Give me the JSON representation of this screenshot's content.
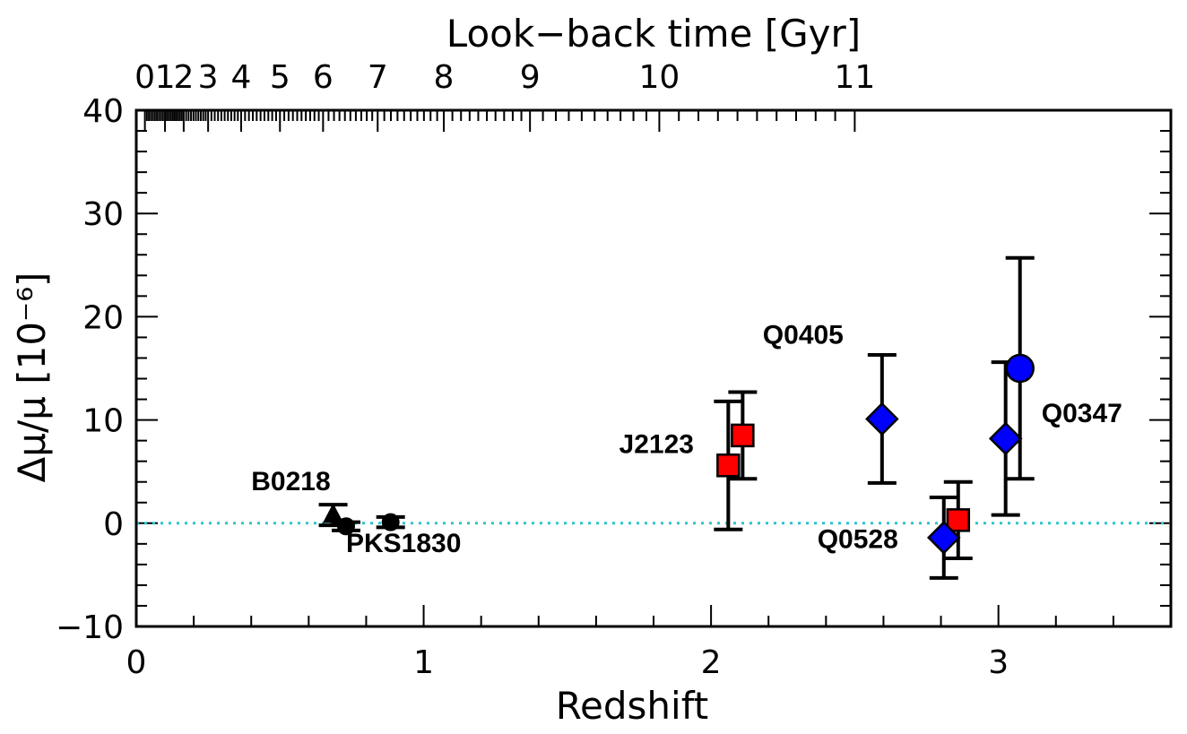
{
  "chart_data": {
    "type": "scatter",
    "xlabel": "Redshift",
    "x2label": "Look−back time [Gyr]",
    "ylabel": "Δμ/μ  [10⁻⁶]",
    "xlim": [
      0,
      3.6
    ],
    "ylim": [
      -10,
      40
    ],
    "grid": false,
    "x_ticks": [
      "0",
      "1",
      "2",
      "3"
    ],
    "y_ticks": [
      "−10",
      "0",
      "10",
      "20",
      "30",
      "40"
    ],
    "top_ticks": [
      {
        "label": "0",
        "z": 0.03
      },
      {
        "label": "1",
        "z": 0.1
      },
      {
        "label": "2",
        "z": 0.165
      },
      {
        "label": "3",
        "z": 0.25
      },
      {
        "label": "4",
        "z": 0.365
      },
      {
        "label": "5",
        "z": 0.5
      },
      {
        "label": "6",
        "z": 0.65
      },
      {
        "label": "7",
        "z": 0.84
      },
      {
        "label": "8",
        "z": 1.07
      },
      {
        "label": "9",
        "z": 1.37
      },
      {
        "label": "10",
        "z": 1.82
      },
      {
        "label": "11",
        "z": 2.5
      }
    ],
    "zero_line": {
      "y": 0,
      "color": "#2ec4cf"
    },
    "series": [
      {
        "marker": "triangle",
        "color": "#000000",
        "points": [
          {
            "x": 0.685,
            "y": 0.8,
            "yerr": 1.0
          }
        ]
      },
      {
        "marker": "circle-small",
        "color": "#000000",
        "points": [
          {
            "x": 0.73,
            "y": -0.3,
            "yerr": 0.4
          },
          {
            "x": 0.885,
            "y": 0.1,
            "yerr": 0.5
          }
        ]
      },
      {
        "marker": "square",
        "color": "#ff0000",
        "points": [
          {
            "x": 2.06,
            "y": 5.6,
            "yerr": 6.2
          },
          {
            "x": 2.11,
            "y": 8.5,
            "yerr": 4.2
          },
          {
            "x": 2.86,
            "y": 0.3,
            "yerr": 3.7
          }
        ]
      },
      {
        "marker": "diamond",
        "color": "#0000ff",
        "points": [
          {
            "x": 2.595,
            "y": 10.1,
            "yerr": 6.2
          },
          {
            "x": 2.81,
            "y": -1.4,
            "yerr": 3.9
          },
          {
            "x": 3.025,
            "y": 8.2,
            "yerr": 7.4
          }
        ]
      },
      {
        "marker": "circle",
        "color": "#0000ff",
        "points": [
          {
            "x": 3.075,
            "y": 15.0,
            "yerr": 10.7
          }
        ]
      }
    ],
    "annotations": [
      {
        "text": "B0218",
        "x": 0.4,
        "y": 3.2
      },
      {
        "text": "PKS1830",
        "x": 0.73,
        "y": -2.8
      },
      {
        "text": "J2123",
        "x": 1.68,
        "y": 6.8
      },
      {
        "text": "Q0405",
        "x": 2.18,
        "y": 17.4
      },
      {
        "text": "Q0528",
        "x": 2.37,
        "y": -2.4
      },
      {
        "text": "Q0347",
        "x": 3.15,
        "y": 9.8
      }
    ]
  }
}
